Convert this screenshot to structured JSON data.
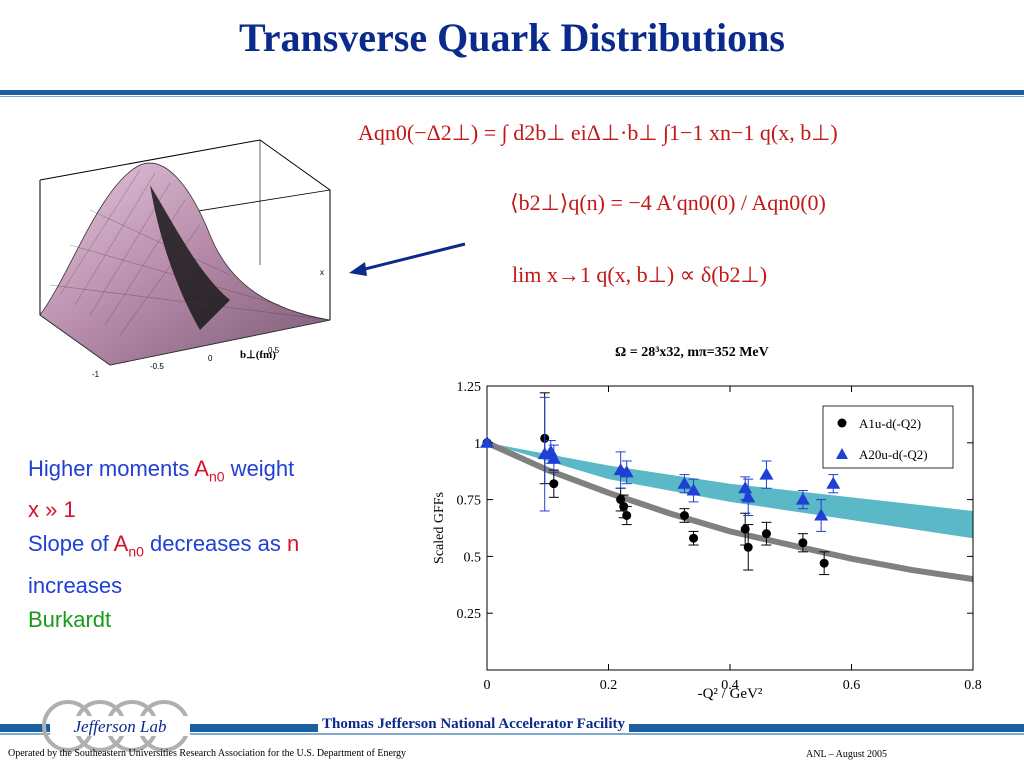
{
  "slide": {
    "title": "Transverse Quark Distributions",
    "footer_lab": "Thomas Jefferson National Accelerator Facility",
    "footer_left": "Operated by the Southeastern Universities Research Association for the U.S. Department of  Energy",
    "footer_right": "ANL – August  2005",
    "logo_text": "Jefferson Lab",
    "colors": {
      "title": "#0a2a8c",
      "rule": "#1a5fa0",
      "formula": "#c21818"
    }
  },
  "formulas": {
    "f1": "Aqn0(−Δ2⊥) = ∫ d2b⊥ eiΔ⊥·b⊥ ∫1−1 xn−1 q(x, b⊥)",
    "f2": "⟨b2⊥⟩q(n) = −4 A′qn0(0) / Aqn0(0)",
    "f3": "lim x→1 q(x, b⊥) ∝ δ(b2⊥)"
  },
  "notes": {
    "line1_a": "Higher moments ",
    "line1_b": "A",
    "line1_c": "n0",
    "line1_d": " weight",
    "line2": " x » 1",
    "line3_a": "Slope of ",
    "line3_b": "A",
    "line3_c": "n0",
    "line3_d": " decreases as ",
    "line3_e": "n",
    "line4": "increases",
    "line5": "Burkardt"
  },
  "surface_plot": {
    "axis_label": "b⊥(fm)",
    "x_ticks": [
      "-1",
      "-0.5",
      "0",
      "0.5"
    ],
    "side_label": "x"
  },
  "chart_data": {
    "type": "scatter",
    "title": "Ω = 28³x32, mπ=352 MeV",
    "xlabel": "-Q² / GeV²",
    "ylabel": "Scaled GFFs",
    "xlim": [
      0,
      0.8
    ],
    "ylim": [
      0,
      1.25
    ],
    "x_ticks": [
      "0",
      "0.2",
      "0.4",
      "0.6",
      "0.8"
    ],
    "y_ticks": [
      "0.25",
      "0.5",
      "0.75",
      "1",
      "1.25"
    ],
    "legend_position": "top-right",
    "series": [
      {
        "name": "A1u-d(-Q2)",
        "marker": "circle",
        "color": "#000000",
        "points": [
          {
            "x": 0,
            "y": 1.0,
            "err": 0
          },
          {
            "x": 0.095,
            "y": 1.02,
            "err": 0.2
          },
          {
            "x": 0.11,
            "y": 0.82,
            "err": 0.06
          },
          {
            "x": 0.22,
            "y": 0.75,
            "err": 0.05
          },
          {
            "x": 0.225,
            "y": 0.72,
            "err": 0.05
          },
          {
            "x": 0.23,
            "y": 0.68,
            "err": 0.04
          },
          {
            "x": 0.325,
            "y": 0.68,
            "err": 0.03
          },
          {
            "x": 0.34,
            "y": 0.58,
            "err": 0.03
          },
          {
            "x": 0.425,
            "y": 0.62,
            "err": 0.07
          },
          {
            "x": 0.43,
            "y": 0.54,
            "err": 0.1
          },
          {
            "x": 0.46,
            "y": 0.6,
            "err": 0.05
          },
          {
            "x": 0.52,
            "y": 0.56,
            "err": 0.04
          },
          {
            "x": 0.555,
            "y": 0.47,
            "err": 0.05
          }
        ]
      },
      {
        "name": "A20u-d(-Q2)",
        "marker": "triangle",
        "color": "#1f3fd6",
        "points": [
          {
            "x": 0,
            "y": 1.0,
            "err": 0
          },
          {
            "x": 0.095,
            "y": 0.95,
            "err": 0.25
          },
          {
            "x": 0.105,
            "y": 0.96,
            "err": 0.05
          },
          {
            "x": 0.11,
            "y": 0.93,
            "err": 0.06
          },
          {
            "x": 0.22,
            "y": 0.88,
            "err": 0.08
          },
          {
            "x": 0.23,
            "y": 0.87,
            "err": 0.05
          },
          {
            "x": 0.325,
            "y": 0.82,
            "err": 0.04
          },
          {
            "x": 0.34,
            "y": 0.79,
            "err": 0.05
          },
          {
            "x": 0.425,
            "y": 0.8,
            "err": 0.05
          },
          {
            "x": 0.43,
            "y": 0.76,
            "err": 0.08
          },
          {
            "x": 0.46,
            "y": 0.86,
            "err": 0.06
          },
          {
            "x": 0.52,
            "y": 0.75,
            "err": 0.04
          },
          {
            "x": 0.55,
            "y": 0.68,
            "err": 0.07
          },
          {
            "x": 0.57,
            "y": 0.82,
            "err": 0.04
          }
        ]
      }
    ],
    "bands": [
      {
        "name": "A20 band",
        "color": "#5bb8c6",
        "x": [
          0,
          0.2,
          0.4,
          0.6,
          0.8
        ],
        "upper": [
          1.0,
          0.9,
          0.82,
          0.76,
          0.7
        ],
        "lower": [
          1.0,
          0.84,
          0.74,
          0.66,
          0.58
        ]
      }
    ],
    "curves": [
      {
        "name": "A1 fit",
        "color": "#808080",
        "x": [
          0,
          0.1,
          0.2,
          0.3,
          0.4,
          0.5,
          0.6,
          0.7,
          0.8
        ],
        "y": [
          1.0,
          0.88,
          0.78,
          0.69,
          0.61,
          0.55,
          0.49,
          0.44,
          0.4
        ]
      }
    ]
  }
}
